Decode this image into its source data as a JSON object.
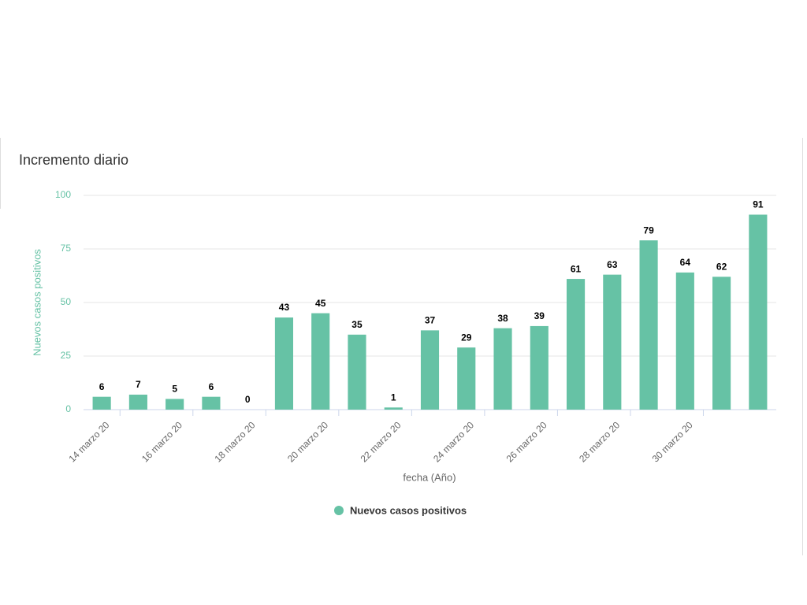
{
  "chart_data": {
    "type": "bar",
    "title": "Incremento diario",
    "categories": [
      "14 marzo 20",
      null,
      "16 marzo 20",
      null,
      "18 marzo 20",
      null,
      "20 marzo 20",
      null,
      "22 marzo 20",
      null,
      "24 marzo 20",
      null,
      "26 marzo 20",
      null,
      "28 marzo 20",
      null,
      "30 marzo 20",
      null,
      null
    ],
    "series": [
      {
        "name": "Nuevos casos positivos",
        "color": "#66c2a5",
        "values": [
          6,
          7,
          5,
          6,
          0,
          43,
          45,
          35,
          1,
          37,
          29,
          38,
          39,
          61,
          63,
          79,
          64,
          62,
          91
        ]
      }
    ],
    "xlabel": "fecha (Año)",
    "ylabel": "Nuevos casos positivos",
    "ylim": [
      0,
      100
    ],
    "yticks": [
      0,
      25,
      50,
      75,
      100
    ],
    "grid": true,
    "legend": "bottom"
  }
}
